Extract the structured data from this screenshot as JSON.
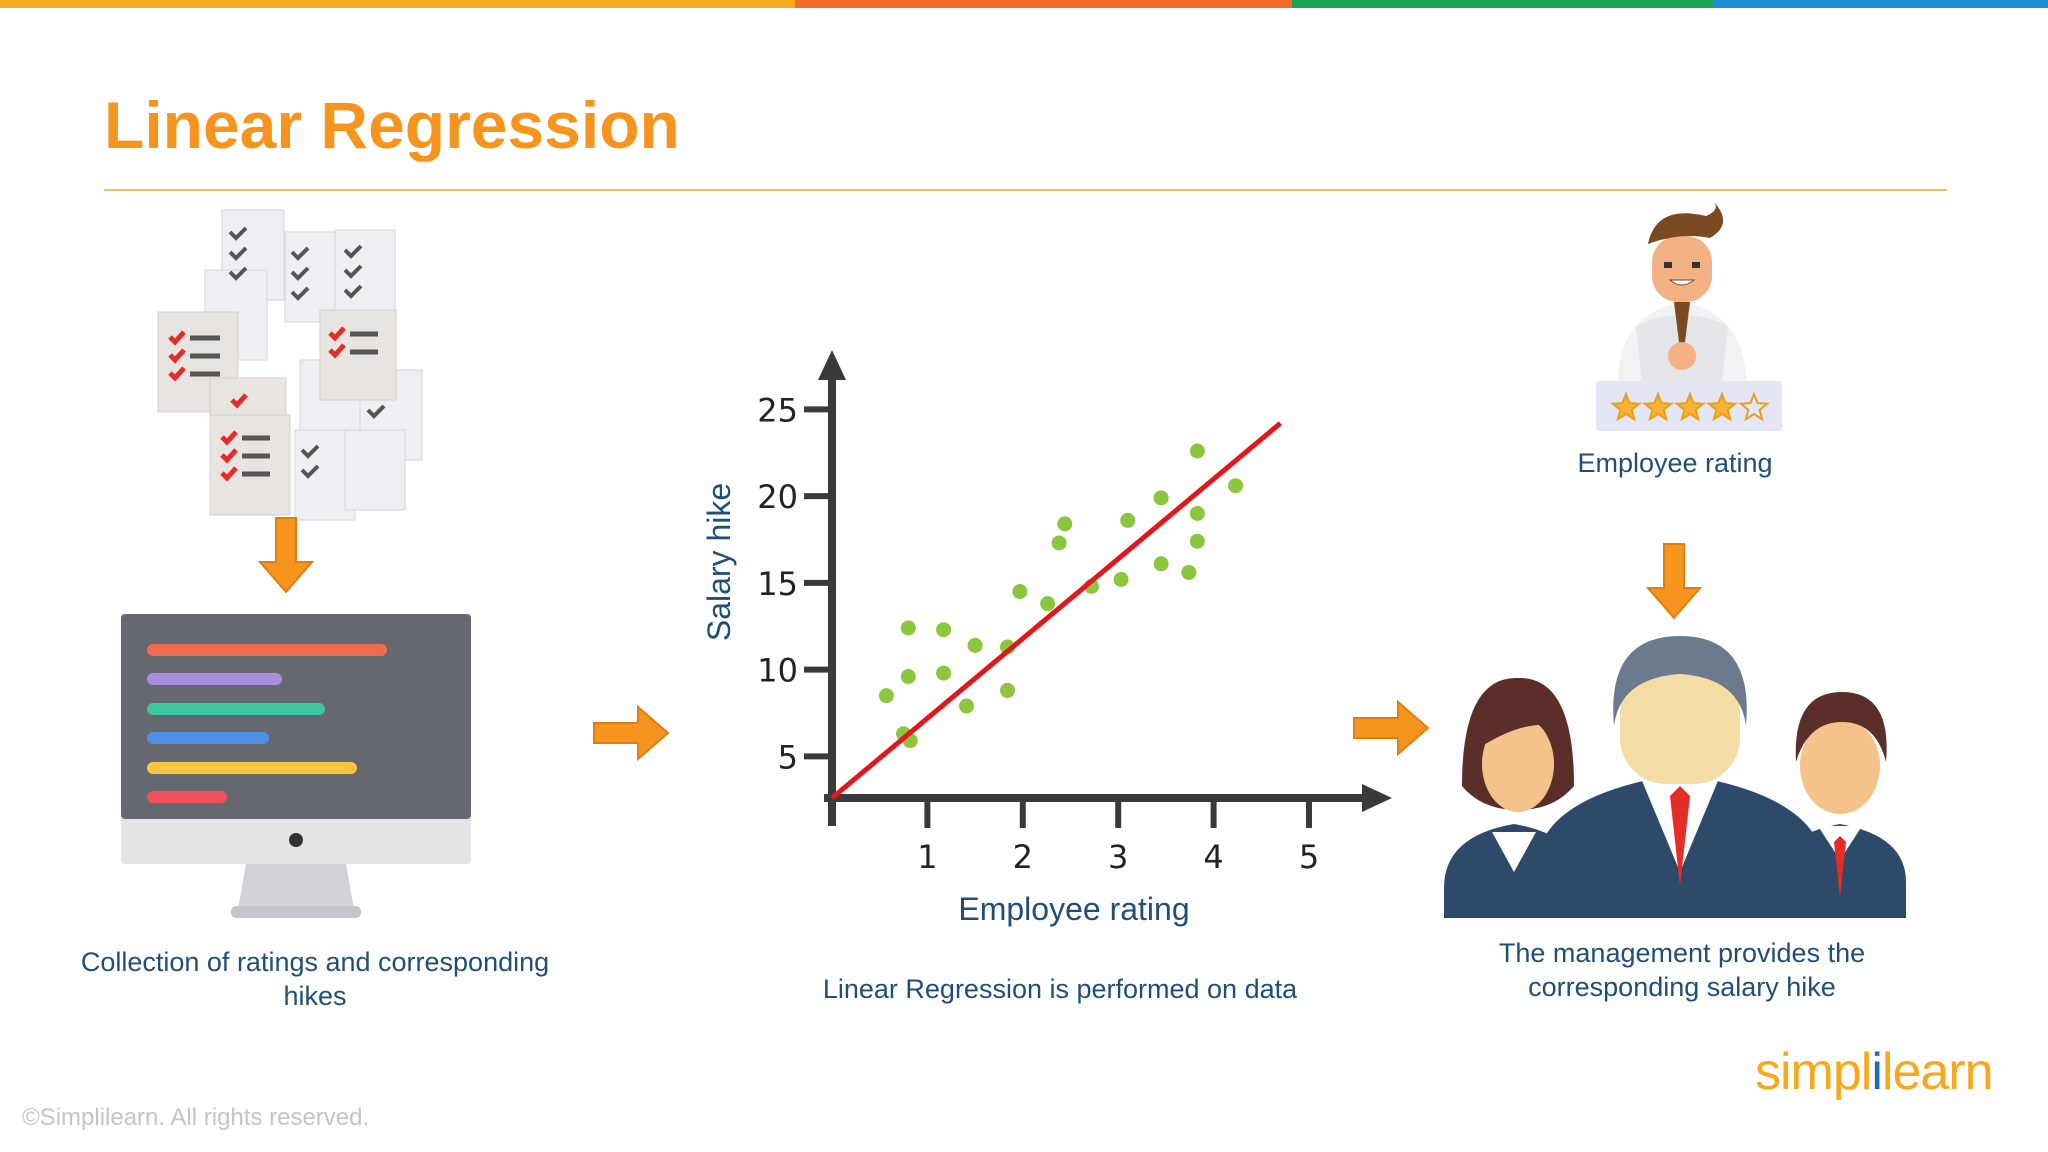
{
  "slide": {
    "title": "Linear Regression",
    "brand_colors": {
      "orange": "#F7941D",
      "navy": "#1F4E79",
      "rule": "#F2C14E"
    },
    "top_bar_colors": [
      "#F7A81B",
      "#F26B2A",
      "#1BA350",
      "#1B8FD6"
    ]
  },
  "step1": {
    "caption_line1": "Collection of ratings and corresponding",
    "caption_line2": "hikes",
    "icon": "documents-and-monitor-icon"
  },
  "step2": {
    "caption": "Linear Regression is performed on data"
  },
  "step3": {
    "rating_label": "Employee rating",
    "stars_filled": 4,
    "stars_total": 5,
    "caption_line1": "The management provides the",
    "caption_line2": "corresponding salary hike"
  },
  "chart_data": {
    "type": "scatter",
    "title": "",
    "xlabel": "Employee rating",
    "ylabel": "Salary hike",
    "x_ticks": [
      1,
      2,
      3,
      4,
      5
    ],
    "y_ticks": [
      5,
      10,
      15,
      20,
      25
    ],
    "xlim": [
      0,
      5.8
    ],
    "ylim": [
      2.6,
      26.4
    ],
    "grid": false,
    "points": [
      {
        "x": 0.57,
        "y": 8.5
      },
      {
        "x": 0.75,
        "y": 6.3
      },
      {
        "x": 0.82,
        "y": 5.9
      },
      {
        "x": 0.8,
        "y": 9.6
      },
      {
        "x": 0.8,
        "y": 12.4
      },
      {
        "x": 1.17,
        "y": 9.8
      },
      {
        "x": 1.17,
        "y": 12.3
      },
      {
        "x": 1.41,
        "y": 7.9
      },
      {
        "x": 1.5,
        "y": 11.4
      },
      {
        "x": 1.84,
        "y": 8.8
      },
      {
        "x": 1.84,
        "y": 11.3
      },
      {
        "x": 1.97,
        "y": 14.5
      },
      {
        "x": 2.26,
        "y": 13.8
      },
      {
        "x": 2.38,
        "y": 17.3
      },
      {
        "x": 2.44,
        "y": 18.4
      },
      {
        "x": 2.72,
        "y": 14.8
      },
      {
        "x": 3.03,
        "y": 15.2
      },
      {
        "x": 3.1,
        "y": 18.6
      },
      {
        "x": 3.45,
        "y": 16.1
      },
      {
        "x": 3.45,
        "y": 19.9
      },
      {
        "x": 3.74,
        "y": 15.6
      },
      {
        "x": 3.83,
        "y": 17.4
      },
      {
        "x": 3.83,
        "y": 19.0
      },
      {
        "x": 3.83,
        "y": 22.6
      },
      {
        "x": 4.23,
        "y": 20.6
      }
    ],
    "regression_line": {
      "x": [
        0,
        4.7
      ],
      "y": [
        2.6,
        24.2
      ],
      "color": "#E3161B"
    },
    "point_color": "#8CC63F"
  },
  "footer": {
    "copyright": "©Simplilearn. All rights reserved.",
    "logo_left": "simpl",
    "logo_sep": "i",
    "logo_right": "learn"
  }
}
